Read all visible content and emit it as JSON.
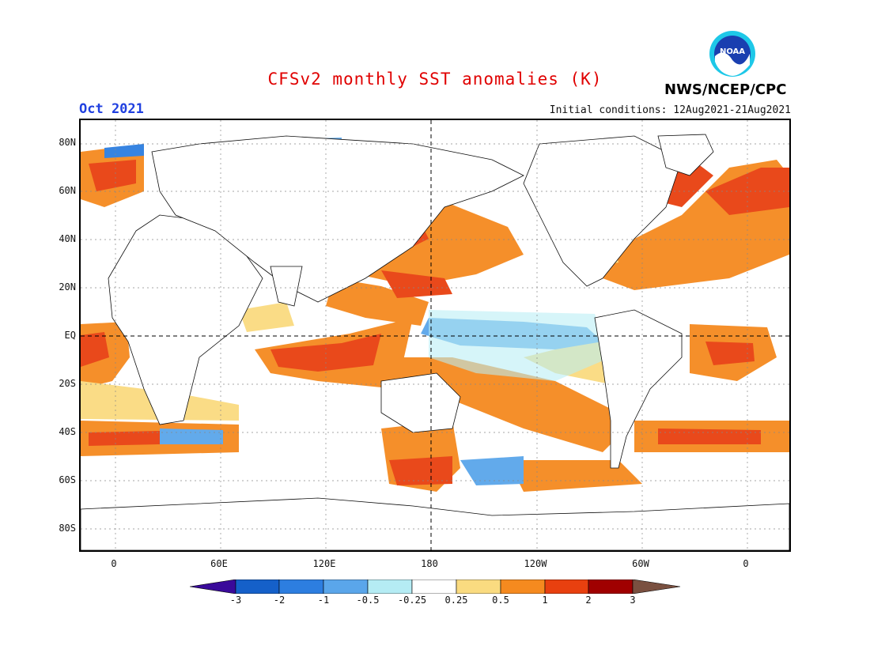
{
  "header": {
    "title": "CFSv2 monthly SST anomalies (K)",
    "period": "Oct 2021",
    "initial_conditions": "Initial conditions: 12Aug2021-21Aug2021",
    "agency": "NWS/NCEP/CPC",
    "logo_text": "NOAA"
  },
  "colors": {
    "title": "#e00000",
    "period": "#2040e0",
    "scale": [
      "#3a0a9a",
      "#1560c9",
      "#2d7ee0",
      "#5aa6ea",
      "#b5ecf4",
      "#ffffff",
      "#ffffff",
      "#fadb80",
      "#f58a1f",
      "#e8400f",
      "#c81010",
      "#a00000",
      "#7a5040"
    ]
  },
  "map": {
    "latitude_labels": [
      "80N",
      "60N",
      "40N",
      "20N",
      "EQ",
      "20S",
      "40S",
      "60S",
      "80S"
    ],
    "longitude_labels": [
      "0",
      "60E",
      "120E",
      "180",
      "120W",
      "60W",
      "0"
    ]
  },
  "colorbar": {
    "labels": [
      "-3",
      "-2",
      "-1",
      "-0.5",
      "-0.25",
      "0.25",
      "0.5",
      "1",
      "2",
      "3"
    ]
  }
}
